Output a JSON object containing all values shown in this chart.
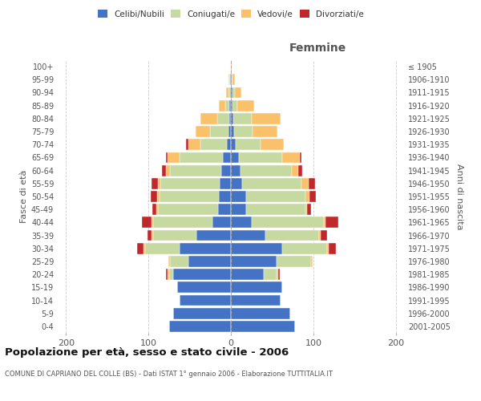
{
  "age_groups": [
    "0-4",
    "5-9",
    "10-14",
    "15-19",
    "20-24",
    "25-29",
    "30-34",
    "35-39",
    "40-44",
    "45-49",
    "50-54",
    "55-59",
    "60-64",
    "65-69",
    "70-74",
    "75-79",
    "80-84",
    "85-89",
    "90-94",
    "95-99",
    "100+"
  ],
  "birth_years": [
    "2001-2005",
    "1996-2000",
    "1991-1995",
    "1986-1990",
    "1981-1985",
    "1976-1980",
    "1971-1975",
    "1966-1970",
    "1961-1965",
    "1956-1960",
    "1951-1955",
    "1946-1950",
    "1941-1945",
    "1936-1940",
    "1931-1935",
    "1926-1930",
    "1921-1925",
    "1916-1920",
    "1911-1915",
    "1906-1910",
    "≤ 1905"
  ],
  "male_celibi": [
    75,
    70,
    62,
    65,
    70,
    52,
    62,
    42,
    22,
    16,
    15,
    14,
    12,
    10,
    5,
    3,
    2,
    2,
    1,
    1,
    0
  ],
  "male_coniugati": [
    0,
    0,
    0,
    0,
    5,
    22,
    42,
    52,
    72,
    72,
    72,
    72,
    62,
    52,
    32,
    22,
    15,
    5,
    2,
    1,
    0
  ],
  "male_vedovi": [
    0,
    0,
    0,
    0,
    2,
    2,
    2,
    2,
    2,
    2,
    2,
    2,
    5,
    15,
    15,
    18,
    20,
    8,
    3,
    1,
    0
  ],
  "male_divorziati": [
    0,
    0,
    0,
    0,
    2,
    0,
    8,
    5,
    12,
    5,
    8,
    8,
    5,
    2,
    2,
    0,
    0,
    0,
    0,
    0,
    0
  ],
  "female_celibi": [
    78,
    72,
    60,
    62,
    40,
    55,
    62,
    42,
    25,
    18,
    18,
    14,
    12,
    10,
    6,
    4,
    3,
    2,
    2,
    1,
    0
  ],
  "female_coniugati": [
    0,
    0,
    0,
    0,
    15,
    42,
    55,
    65,
    88,
    72,
    72,
    72,
    62,
    52,
    30,
    22,
    22,
    6,
    3,
    1,
    0
  ],
  "female_vedovi": [
    0,
    0,
    0,
    0,
    2,
    2,
    2,
    2,
    2,
    2,
    5,
    8,
    8,
    22,
    28,
    30,
    35,
    20,
    8,
    3,
    1
  ],
  "female_divorziati": [
    0,
    0,
    0,
    0,
    2,
    0,
    8,
    8,
    15,
    5,
    8,
    8,
    5,
    2,
    0,
    0,
    0,
    0,
    0,
    0,
    0
  ],
  "colors": {
    "celibi": "#4472c4",
    "coniugati": "#c5d9a0",
    "vedovi": "#fac06a",
    "divorziati": "#c0282a"
  },
  "title1": "Popolazione per età, sesso e stato civile - 2006",
  "title2": "COMUNE DI CAPRIANO DEL COLLE (BS) - Dati ISTAT 1° gennaio 2006 - Elaborazione TUTTITALIA.IT",
  "xlabel_right": "Femmine",
  "ylabel_left": "Fasce di età",
  "ylabel_right": "Anni di nascita",
  "bg_color": "#ffffff",
  "grid_color": "#cccccc",
  "xmin": -210,
  "xmax": 210
}
